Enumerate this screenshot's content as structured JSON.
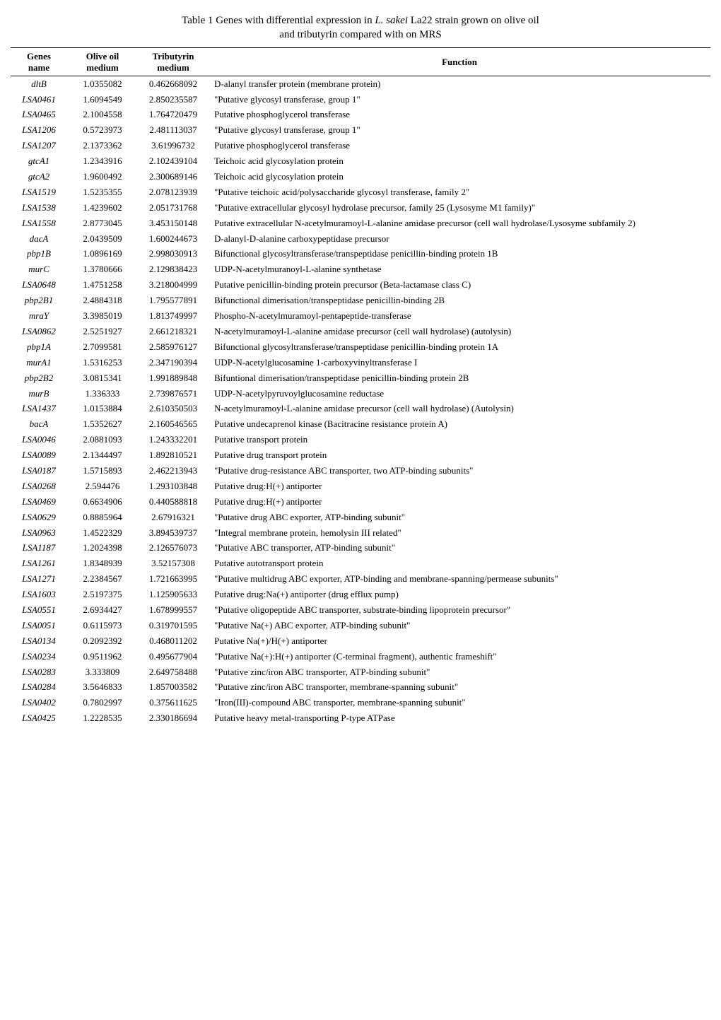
{
  "title": "Table 1 Genes with differential expression in <i>L. sakei</i> La22 strain grown on olive oil and tributyrin compared with on MRS",
  "title_line1": "Table 1 Genes with differential expression in ",
  "title_italic": "L. sakei",
  "title_line1_end": " La22 strain grown on olive oil",
  "title_line2": "and tributyrin compared with on MRS",
  "headers": {
    "gene": "Genes\nname",
    "olive": "Olive oil\nmedium",
    "trib": "Tributyrin\nmedium",
    "function": "Function"
  },
  "rows": [
    {
      "gene": "dltB",
      "olive": "1.0355082",
      "trib": "0.462668092",
      "function": "D-alanyl transfer protein (membrane protein)"
    },
    {
      "gene": "LSA0461",
      "olive": "1.6094549",
      "trib": "2.850235587",
      "function": "\"Putative glycosyl transferase, group 1\""
    },
    {
      "gene": "LSA0465",
      "olive": "2.1004558",
      "trib": "1.764720479",
      "function": "Putative phosphoglycerol transferase"
    },
    {
      "gene": "LSA1206",
      "olive": "0.5723973",
      "trib": "2.481113037",
      "function": "\"Putative glycosyl transferase, group 1\""
    },
    {
      "gene": "LSA1207",
      "olive": "2.1373362",
      "trib": "3.61996732",
      "function": "Putative phosphoglycerol transferase"
    },
    {
      "gene": "gtcA1",
      "olive": "1.2343916",
      "trib": "2.102439104",
      "function": "Teichoic acid glycosylation protein"
    },
    {
      "gene": "gtcA2",
      "olive": "1.9600492",
      "trib": "2.300689146",
      "function": "Teichoic acid glycosylation protein"
    },
    {
      "gene": "LSA1519",
      "olive": "1.5235355",
      "trib": "2.078123939",
      "function": "\"Putative teichoic acid/polysaccharide glycosyl transferase, family 2\""
    },
    {
      "gene": "LSA1538",
      "olive": "1.4239602",
      "trib": "2.051731768",
      "function": "\"Putative extracellular glycosyl hydrolase precursor, family 25 (Lysosyme M1 family)\""
    },
    {
      "gene": "LSA1558",
      "olive": "2.8773045",
      "trib": "3.453150148",
      "function": "Putative extracellular N-acetylmuramoyl-L-alanine amidase precursor (cell wall hydrolase/Lysosyme subfamily 2)"
    },
    {
      "gene": "dacA",
      "olive": "2.0439509",
      "trib": "1.600244673",
      "function": "D-alanyl-D-alanine carboxypeptidase precursor"
    },
    {
      "gene": "pbp1B",
      "olive": "1.0896169",
      "trib": "2.998030913",
      "function": "Bifunctional glycosyltransferase/transpeptidase penicillin-binding protein 1B"
    },
    {
      "gene": "murC",
      "olive": "1.3780666",
      "trib": "2.129838423",
      "function": "UDP-N-acetylmuranoyl-L-alanine synthetase"
    },
    {
      "gene": "LSA0648",
      "olive": "1.4751258",
      "trib": "3.218004999",
      "function": "Putative penicillin-binding protein precursor (Beta-lactamase class C)"
    },
    {
      "gene": "pbp2B1",
      "olive": "2.4884318",
      "trib": "1.795577891",
      "function": "Bifunctional dimerisation/transpeptidase penicillin-binding 2B"
    },
    {
      "gene": "mraY",
      "olive": "3.3985019",
      "trib": "1.813749997",
      "function": "Phospho-N-acetylmuramoyl-pentapeptide-transferase"
    },
    {
      "gene": "LSA0862",
      "olive": "2.5251927",
      "trib": "2.661218321",
      "function": "N-acetylmuramoyl-L-alanine amidase precursor (cell wall hydrolase) (autolysin)"
    },
    {
      "gene": "pbp1A",
      "olive": "2.7099581",
      "trib": "2.585976127",
      "function": "Bifunctional glycosyltransferase/transpeptidase penicillin-binding protein 1A"
    },
    {
      "gene": "murA1",
      "olive": "1.5316253",
      "trib": "2.347190394",
      "function": "UDP-N-acetylglucosamine 1-carboxyvinyltransferase I"
    },
    {
      "gene": "pbp2B2",
      "olive": "3.0815341",
      "trib": "1.991889848",
      "function": "Bifuntional dimerisation/transpeptidase penicillin-binding protein 2B"
    },
    {
      "gene": "murB",
      "olive": "1.336333",
      "trib": "2.739876571",
      "function": "UDP-N-acetylpyruvoylglucosamine reductase"
    },
    {
      "gene": "LSA1437",
      "olive": "1.0153884",
      "trib": "2.610350503",
      "function": "N-acetylmuramoyl-L-alanine amidase precursor (cell wall hydrolase) (Autolysin)"
    },
    {
      "gene": "bacA",
      "olive": "1.5352627",
      "trib": "2.160546565",
      "function": "Putative undecaprenol kinase (Bacitracine resistance protein A)"
    },
    {
      "gene": "LSA0046",
      "olive": "2.0881093",
      "trib": "1.243332201",
      "function": "Putative transport protein"
    },
    {
      "gene": "LSA0089",
      "olive": "2.1344497",
      "trib": "1.892810521",
      "function": "Putative drug transport protein"
    },
    {
      "gene": "LSA0187",
      "olive": "1.5715893",
      "trib": "2.462213943",
      "function": "\"Putative drug-resistance ABC transporter, two ATP-binding subunits\""
    },
    {
      "gene": "LSA0268",
      "olive": "2.594476",
      "trib": "1.293103848",
      "function": "Putative drug:H(+) antiporter"
    },
    {
      "gene": "LSA0469",
      "olive": "0.6634906",
      "trib": "0.440588818",
      "function": "Putative drug:H(+) antiporter"
    },
    {
      "gene": "LSA0629",
      "olive": "0.8885964",
      "trib": "2.67916321",
      "function": "\"Putative drug ABC exporter, ATP-binding subunit\""
    },
    {
      "gene": "LSA0963",
      "olive": "1.4522329",
      "trib": "3.894539737",
      "function": "\"Integral membrane protein, hemolysin III related\""
    },
    {
      "gene": "LSA1187",
      "olive": "1.2024398",
      "trib": "2.126576073",
      "function": "\"Putative ABC transporter, ATP-binding subunit\""
    },
    {
      "gene": "LSA1261",
      "olive": "1.8348939",
      "trib": "3.52157308",
      "function": "Putative autotransport protein"
    },
    {
      "gene": "LSA1271",
      "olive": "2.2384567",
      "trib": "1.721663995",
      "function": "\"Putative multidrug ABC exporter, ATP-binding and membrane-spanning/permease subunits\""
    },
    {
      "gene": "LSA1603",
      "olive": "2.5197375",
      "trib": "1.125905633",
      "function": "Putative drug:Na(+) antiporter (drug efflux pump)"
    },
    {
      "gene": "LSA0551",
      "olive": "2.6934427",
      "trib": "1.678999557",
      "function": "\"Putative oligopeptide ABC transporter, substrate-binding lipoprotein precursor\""
    },
    {
      "gene": "LSA0051",
      "olive": "0.6115973",
      "trib": "0.319701595",
      "function": "\"Putative Na(+) ABC exporter, ATP-binding subunit\""
    },
    {
      "gene": "LSA0134",
      "olive": "0.2092392",
      "trib": "0.468011202",
      "function": "Putative Na(+)/H(+) antiporter"
    },
    {
      "gene": "LSA0234",
      "olive": "0.9511962",
      "trib": "0.495677904",
      "function": "\"Putative Na(+):H(+) antiporter (C-terminal fragment), authentic frameshift\""
    },
    {
      "gene": "LSA0283",
      "olive": "3.333809",
      "trib": "2.649758488",
      "function": "\"Putative zinc/iron ABC transporter, ATP-binding subunit\""
    },
    {
      "gene": "LSA0284",
      "olive": "3.5646833",
      "trib": "1.857003582",
      "function": "\"Putative zinc/iron ABC transporter, membrane-spanning subunit\""
    },
    {
      "gene": "LSA0402",
      "olive": "0.7802997",
      "trib": "0.375611625",
      "function": "\"Iron(III)-compound ABC transporter, membrane-spanning subunit\""
    },
    {
      "gene": "LSA0425",
      "olive": "1.2228535",
      "trib": "2.330186694",
      "function": "Putative heavy metal-transporting P-type ATPase"
    }
  ],
  "styling": {
    "font_family": "Times New Roman",
    "font_size_body": 13,
    "font_size_title": 15,
    "background_color": "#ffffff",
    "text_color": "#000000",
    "border_color": "#000000",
    "top_border_width": 1.5,
    "header_bottom_border_width": 1
  }
}
